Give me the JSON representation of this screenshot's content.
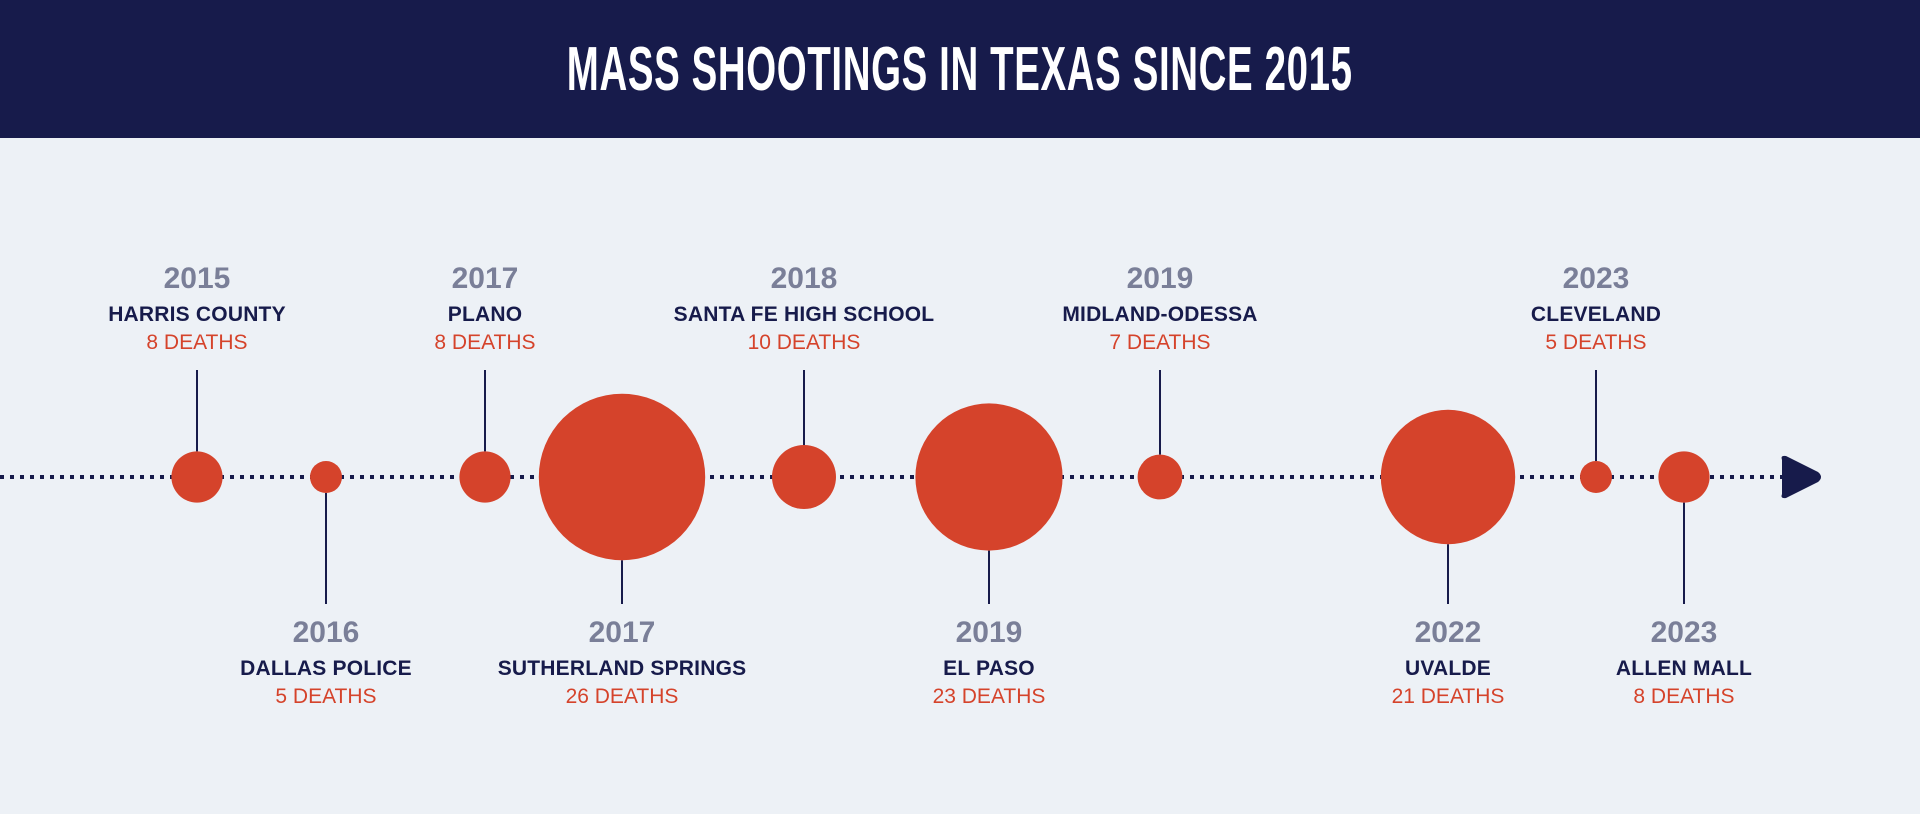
{
  "header": {
    "title": "MASS SHOOTINGS IN TEXAS SINCE 2015"
  },
  "colors": {
    "header_bg": "#171b4b",
    "background": "#edf1f6",
    "circle": "#d5432b",
    "line": "#171b4b",
    "year": "#7a7f98",
    "deaths_text": "#d5432b"
  },
  "chart_data": {
    "type": "timeline-bubble",
    "title": "MASS SHOOTINGS IN TEXAS SINCE 2015",
    "size_encoding": "deaths",
    "events": [
      {
        "year": "2015",
        "name": "HARRIS COUNTY",
        "deaths": 8,
        "deaths_label": "8 DEATHS",
        "label_side": "top"
      },
      {
        "year": "2016",
        "name": "DALLAS POLICE",
        "deaths": 5,
        "deaths_label": "5 DEATHS",
        "label_side": "bottom"
      },
      {
        "year": "2017",
        "name": "PLANO",
        "deaths": 8,
        "deaths_label": "8 DEATHS",
        "label_side": "top"
      },
      {
        "year": "2017",
        "name": "SUTHERLAND SPRINGS",
        "deaths": 26,
        "deaths_label": "26 DEATHS",
        "label_side": "bottom"
      },
      {
        "year": "2018",
        "name": "SANTA FE HIGH SCHOOL",
        "deaths": 10,
        "deaths_label": "10 DEATHS",
        "label_side": "top"
      },
      {
        "year": "2019",
        "name": "EL PASO",
        "deaths": 23,
        "deaths_label": "23 DEATHS",
        "label_side": "bottom"
      },
      {
        "year": "2019",
        "name": "MIDLAND-ODESSA",
        "deaths": 7,
        "deaths_label": "7 DEATHS",
        "label_side": "top"
      },
      {
        "year": "2022",
        "name": "UVALDE",
        "deaths": 21,
        "deaths_label": "21 DEATHS",
        "label_side": "bottom"
      },
      {
        "year": "2023",
        "name": "CLEVELAND",
        "deaths": 5,
        "deaths_label": "5 DEATHS",
        "label_side": "top"
      },
      {
        "year": "2023",
        "name": "ALLEN MALL",
        "deaths": 8,
        "deaths_label": "8 DEATHS",
        "label_side": "bottom"
      }
    ]
  }
}
